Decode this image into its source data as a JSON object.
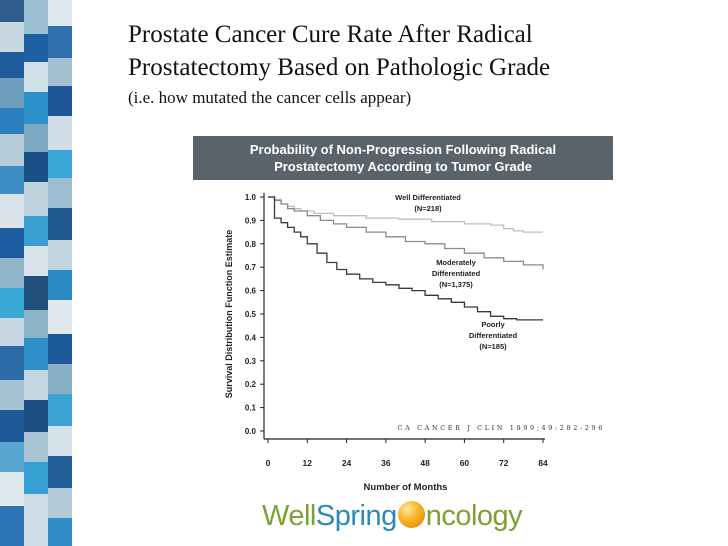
{
  "slide": {
    "title_line1": "Prostate Cancer Cure Rate After Radical",
    "title_line2": "Prostatectomy Based on Pathologic Grade",
    "subtitle": "(i.e. how mutated the cancer cells appear)"
  },
  "banner": {
    "line1": "Probability of Non-Progression Following Radical",
    "line2": "Prostatectomy According to Tumor Grade"
  },
  "chart_data": {
    "type": "line",
    "title": "Probability of Non-Progression Following Radical Prostatectomy According to Tumor Grade",
    "xlabel": "Number of Months",
    "ylabel": "Survival Distribution Function Estimate",
    "xlim": [
      0,
      84
    ],
    "ylim": [
      0.0,
      1.0
    ],
    "x_ticks": [
      "0",
      "12",
      "24",
      "36",
      "48",
      "60",
      "72",
      "84"
    ],
    "y_ticks": [
      "0.0",
      "0.1",
      "0.2",
      "0.3",
      "0.4",
      "0.5",
      "0.6",
      "0.7",
      "0.8",
      "0.9",
      "1.0"
    ],
    "citation": "CA CANCER J CLIN 1999;49:282-296",
    "series": [
      {
        "name": "Well Differentiated (N=218)",
        "label_lines": [
          "Well Differentiated",
          "(N=218)"
        ],
        "x": [
          0,
          2,
          4,
          6,
          8,
          10,
          14,
          20,
          30,
          40,
          50,
          60,
          68,
          72,
          75,
          78,
          80,
          84
        ],
        "y": [
          1.0,
          0.99,
          0.97,
          0.96,
          0.95,
          0.94,
          0.93,
          0.92,
          0.91,
          0.905,
          0.895,
          0.885,
          0.88,
          0.865,
          0.855,
          0.85,
          0.85,
          0.85
        ]
      },
      {
        "name": "Moderately Differentiated (N=1,375)",
        "label_lines": [
          "Moderately",
          "Differentiated",
          "(N=1,375)"
        ],
        "x": [
          0,
          2,
          4,
          6,
          8,
          12,
          16,
          20,
          24,
          30,
          36,
          42,
          48,
          54,
          60,
          66,
          72,
          78,
          84
        ],
        "y": [
          1.0,
          0.985,
          0.97,
          0.95,
          0.94,
          0.92,
          0.9,
          0.885,
          0.87,
          0.85,
          0.83,
          0.81,
          0.8,
          0.78,
          0.76,
          0.74,
          0.725,
          0.71,
          0.69
        ]
      },
      {
        "name": "Poorly Differentiated (N=185)",
        "label_lines": [
          "Poorly",
          "Differentiated",
          "(N=185)"
        ],
        "x": [
          0,
          2,
          4,
          6,
          8,
          10,
          12,
          15,
          18,
          21,
          24,
          28,
          32,
          36,
          40,
          44,
          48,
          52,
          56,
          60,
          64,
          68,
          72,
          76,
          84
        ],
        "y": [
          1.0,
          0.91,
          0.89,
          0.87,
          0.85,
          0.83,
          0.8,
          0.76,
          0.72,
          0.69,
          0.67,
          0.65,
          0.635,
          0.625,
          0.61,
          0.6,
          0.58,
          0.565,
          0.55,
          0.53,
          0.51,
          0.49,
          0.48,
          0.475,
          0.475
        ]
      }
    ]
  },
  "logo": {
    "part1": "Well",
    "part2": "Spring",
    "part3": "ncology"
  },
  "colors": {
    "banner_bg": "#5b636a",
    "curve_well": "#bdbdbd",
    "curve_moderate": "#8a8a8a",
    "curve_poor": "#3a3a3a",
    "strip_dark": "#1f5fa3",
    "strip_light": "#8fb6cb",
    "strip_cyan": "#39a9d5"
  }
}
